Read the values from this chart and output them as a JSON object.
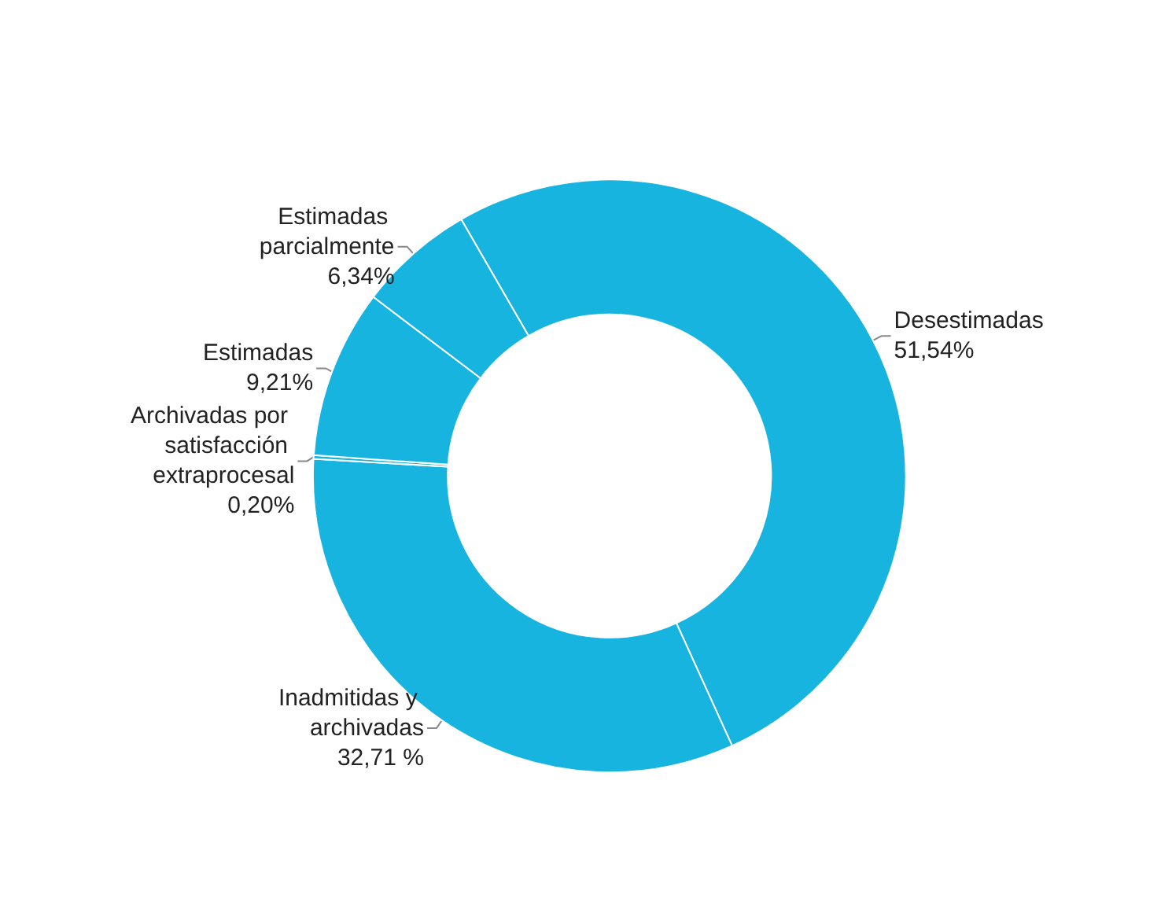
{
  "chart_data": {
    "type": "donut",
    "categories": [
      "Desestimadas",
      "Inadmitidas y archivadas",
      "Archivadas por satisfacción extraprocesal",
      "Estimadas",
      "Estimadas parcialmente"
    ],
    "values": [
      51.54,
      32.71,
      0.2,
      9.21,
      6.34
    ],
    "value_labels": [
      "51,54%",
      "32,71 %",
      "0,20%",
      "9,21%",
      "6,34%"
    ],
    "colors": [
      "#17b4e0",
      "#17b4e0",
      "#17b4e0",
      "#17b4e0",
      "#17b4e0"
    ],
    "legend": false
  }
}
